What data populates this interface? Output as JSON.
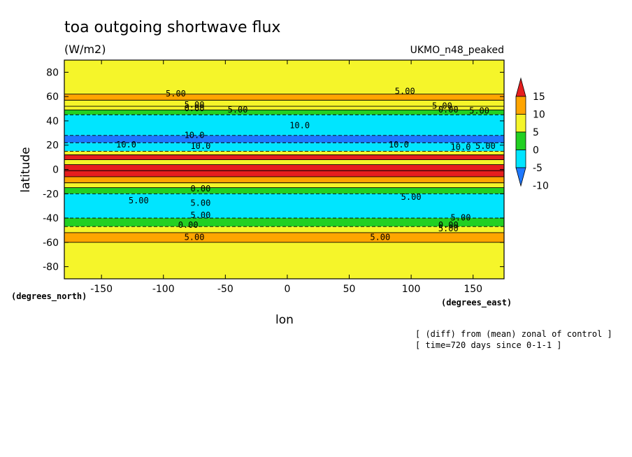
{
  "chart_data": {
    "type": "heatmap",
    "title": "toa outgoing shortwave flux",
    "units": "(W/m2)",
    "run_label": "UKMO_n48_peaked",
    "xlabel": "lon",
    "ylabel": "latitude",
    "x_units_label": "(degrees_east)",
    "y_units_label": "(degrees_north)",
    "xlim": [
      -180,
      175
    ],
    "ylim": [
      -90,
      90
    ],
    "x_ticks": [
      -150,
      -100,
      -50,
      0,
      50,
      100,
      150
    ],
    "y_ticks": [
      -80,
      -60,
      -40,
      -20,
      0,
      20,
      40,
      60,
      80
    ],
    "x_tick_labels": [
      "-150",
      "-100",
      "-50",
      "0",
      "50",
      "100",
      "150"
    ],
    "y_tick_labels": [
      "-80",
      "-60",
      "-40",
      "-20",
      "0",
      "20",
      "40",
      "60",
      "80"
    ],
    "colorbar": {
      "levels": [
        -10,
        -5,
        0,
        5,
        10,
        15
      ],
      "labels": [
        "-10",
        "-5",
        "0",
        "5",
        "10",
        "15"
      ],
      "colors": [
        "#1e78ff",
        "#00e5ff",
        "#22d022",
        "#f5f52a",
        "#ffa500",
        "#e61e1e"
      ]
    },
    "latitude_bands": [
      {
        "lat": [
          62,
          90
        ],
        "value": 2
      },
      {
        "lat": [
          57,
          62
        ],
        "value": 7
      },
      {
        "lat": [
          52,
          57
        ],
        "value": 4
      },
      {
        "lat": [
          49,
          52
        ],
        "value": 2
      },
      {
        "lat": [
          45,
          49
        ],
        "value": -3
      },
      {
        "lat": [
          28,
          45
        ],
        "value": -8
      },
      {
        "lat": [
          22,
          28
        ],
        "value": -12
      },
      {
        "lat": [
          15,
          22
        ],
        "value": -6
      },
      {
        "lat": [
          12,
          15
        ],
        "value": 4
      },
      {
        "lat": [
          8,
          12
        ],
        "value": 10
      },
      {
        "lat": [
          4,
          8
        ],
        "value": 4
      },
      {
        "lat": [
          -1,
          4
        ],
        "value": 16
      },
      {
        "lat": [
          -6,
          1
        ],
        "value": 10
      },
      {
        "lat": [
          -11,
          -6
        ],
        "value": 6
      },
      {
        "lat": [
          -15,
          -11
        ],
        "value": 2
      },
      {
        "lat": [
          -20,
          -15
        ],
        "value": -4
      },
      {
        "lat": [
          -40,
          -20
        ],
        "value": -8
      },
      {
        "lat": [
          -47,
          -40
        ],
        "value": -3
      },
      {
        "lat": [
          -52,
          -47
        ],
        "value": 2
      },
      {
        "lat": [
          -60,
          -52
        ],
        "value": 7
      },
      {
        "lat": [
          -90,
          -60
        ],
        "value": 2
      }
    ],
    "contour_labels": [
      {
        "lon": -90,
        "lat": 60,
        "text": "5.00"
      },
      {
        "lon": 95,
        "lat": 62,
        "text": "5.00"
      },
      {
        "lon": -75,
        "lat": 51,
        "text": "5.00"
      },
      {
        "lon": -75,
        "lat": 48,
        "text": "0.00"
      },
      {
        "lon": -40,
        "lat": 47,
        "text": "5.00"
      },
      {
        "lon": 125,
        "lat": 50,
        "text": "5.00"
      },
      {
        "lon": 130,
        "lat": 47,
        "text": "0.00"
      },
      {
        "lon": 155,
        "lat": 46,
        "text": "5.00"
      },
      {
        "lon": 10,
        "lat": 34,
        "text": "10.0"
      },
      {
        "lon": -75,
        "lat": 26,
        "text": "10.0"
      },
      {
        "lon": -130,
        "lat": 18,
        "text": "10.0"
      },
      {
        "lon": -70,
        "lat": 17,
        "text": "10.0"
      },
      {
        "lon": 90,
        "lat": 18,
        "text": "10.0"
      },
      {
        "lon": 140,
        "lat": 16,
        "text": "10.0"
      },
      {
        "lon": 160,
        "lat": 17,
        "text": "5.00"
      },
      {
        "lon": -120,
        "lat": -28,
        "text": "5.00"
      },
      {
        "lon": 100,
        "lat": -25,
        "text": "5.00"
      },
      {
        "lon": -70,
        "lat": -30,
        "text": "5.00"
      },
      {
        "lon": -70,
        "lat": -40,
        "text": "5.00"
      },
      {
        "lon": 140,
        "lat": -42,
        "text": "5.00"
      },
      {
        "lon": -80,
        "lat": -48,
        "text": "0.00"
      },
      {
        "lon": 130,
        "lat": -48,
        "text": "0.00"
      },
      {
        "lon": 130,
        "lat": -51,
        "text": "5.00"
      },
      {
        "lon": -75,
        "lat": -58,
        "text": "5.00"
      },
      {
        "lon": 75,
        "lat": -58,
        "text": "5.00"
      },
      {
        "lon": -70,
        "lat": -18,
        "text": "0.00"
      }
    ],
    "grid": false,
    "legend": "right colorbar"
  },
  "annotations": {
    "line1": "[ (diff) from (mean) zonal of control ]",
    "line2": "[ time=720 days since 0-1-1 ]"
  }
}
